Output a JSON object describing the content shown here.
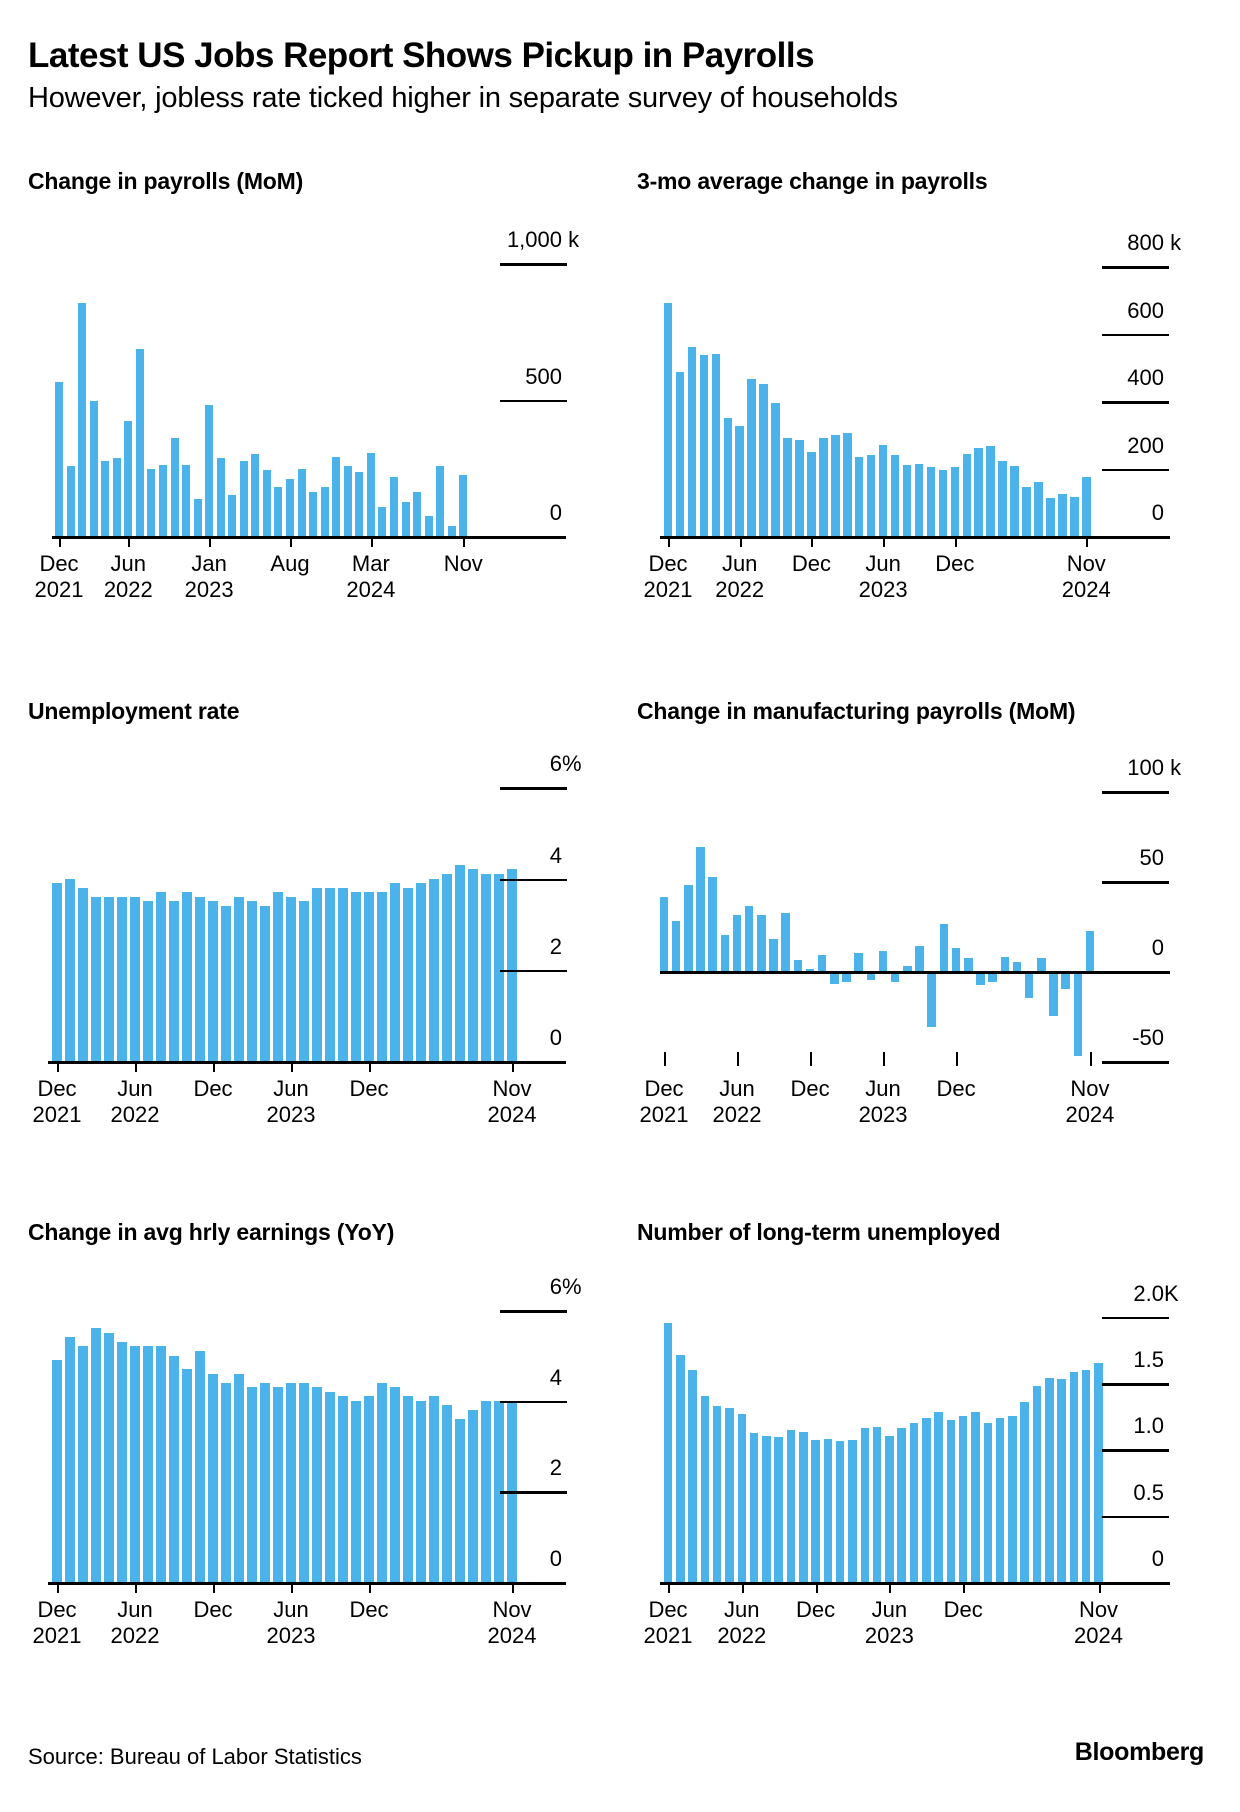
{
  "header": {
    "title": "Latest US Jobs Report Shows Pickup in Payrolls",
    "subtitle": "However, jobless rate ticked higher in separate survey of households"
  },
  "footer": {
    "source": "Source: Bureau of Labor Statistics",
    "brand": "Bloomberg"
  },
  "accent_color": "#4BB3EA",
  "x_months": [
    "2021-12",
    "2022-01",
    "2022-02",
    "2022-03",
    "2022-04",
    "2022-05",
    "2022-06",
    "2022-07",
    "2022-08",
    "2022-09",
    "2022-10",
    "2022-11",
    "2022-12",
    "2023-01",
    "2023-02",
    "2023-03",
    "2023-04",
    "2023-05",
    "2023-06",
    "2023-07",
    "2023-08",
    "2023-09",
    "2023-10",
    "2023-11",
    "2023-12",
    "2024-01",
    "2024-02",
    "2024-03",
    "2024-04",
    "2024-05",
    "2024-06",
    "2024-07",
    "2024-08",
    "2024-09",
    "2024-10",
    "2024-11"
  ],
  "chart_data": [
    {
      "type": "bar",
      "title": "Change in payrolls (MoM)",
      "ylim": [
        0,
        1000
      ],
      "y_axis": {
        "labels": [
          {
            "text": "1,000",
            "suffix": " k",
            "value": 1000
          },
          {
            "text": "500",
            "suffix": "",
            "value": 500
          },
          {
            "text": "0",
            "suffix": "",
            "value": 0
          }
        ]
      },
      "x_ticks": [
        {
          "index": 0,
          "month": "Dec",
          "year": "2021"
        },
        {
          "index": 6,
          "month": "Jun",
          "year": "2022"
        },
        {
          "index": 13,
          "month": "Jan",
          "year": "2023"
        },
        {
          "index": 20,
          "month": "Aug",
          "year": ""
        },
        {
          "index": 27,
          "month": "Mar",
          "year": "2024"
        },
        {
          "index": 35,
          "month": "Nov",
          "year": ""
        }
      ],
      "values": [
        565,
        255,
        855,
        495,
        275,
        285,
        420,
        685,
        245,
        260,
        360,
        260,
        135,
        480,
        285,
        150,
        275,
        300,
        240,
        180,
        210,
        245,
        160,
        180,
        290,
        255,
        235,
        305,
        105,
        215,
        125,
        160,
        75,
        255,
        35,
        225
      ]
    },
    {
      "type": "bar",
      "title": "3-mo average change in payrolls",
      "ylim": [
        0,
        800
      ],
      "y_axis": {
        "labels": [
          {
            "text": "800",
            "suffix": " k",
            "value": 800
          },
          {
            "text": "600",
            "suffix": "",
            "value": 600
          },
          {
            "text": "400",
            "suffix": "",
            "value": 400
          },
          {
            "text": "200",
            "suffix": "",
            "value": 200
          },
          {
            "text": "0",
            "suffix": "",
            "value": 0
          }
        ]
      },
      "x_ticks": [
        {
          "index": 0,
          "month": "Dec",
          "year": "2021"
        },
        {
          "index": 6,
          "month": "Jun",
          "year": "2022"
        },
        {
          "index": 12,
          "month": "Dec",
          "year": ""
        },
        {
          "index": 18,
          "month": "Jun",
          "year": "2023"
        },
        {
          "index": 24,
          "month": "Dec",
          "year": ""
        },
        {
          "index": 35,
          "month": "Nov",
          "year": "2024"
        }
      ],
      "values": [
        690,
        485,
        560,
        535,
        540,
        350,
        325,
        465,
        450,
        395,
        290,
        285,
        250,
        290,
        300,
        305,
        235,
        240,
        270,
        240,
        210,
        212,
        205,
        196,
        204,
        243,
        260,
        267,
        223,
        207,
        146,
        161,
        113,
        123,
        115,
        175
      ]
    },
    {
      "type": "bar",
      "title": "Unemployment rate",
      "ylim": [
        0,
        6
      ],
      "y_axis": {
        "labels": [
          {
            "text": "6",
            "suffix": "%",
            "value": 6
          },
          {
            "text": "4",
            "suffix": "",
            "value": 4
          },
          {
            "text": "2",
            "suffix": "",
            "value": 2
          },
          {
            "text": "0",
            "suffix": "",
            "value": 0
          }
        ]
      },
      "x_ticks": [
        {
          "index": 0,
          "month": "Dec",
          "year": "2021"
        },
        {
          "index": 6,
          "month": "Jun",
          "year": "2022"
        },
        {
          "index": 12,
          "month": "Dec",
          "year": ""
        },
        {
          "index": 18,
          "month": "Jun",
          "year": "2023"
        },
        {
          "index": 24,
          "month": "Dec",
          "year": ""
        },
        {
          "index": 35,
          "month": "Nov",
          "year": "2024"
        }
      ],
      "values": [
        3.9,
        4.0,
        3.8,
        3.6,
        3.6,
        3.6,
        3.6,
        3.5,
        3.7,
        3.5,
        3.7,
        3.6,
        3.5,
        3.4,
        3.6,
        3.5,
        3.4,
        3.7,
        3.6,
        3.5,
        3.8,
        3.8,
        3.8,
        3.7,
        3.7,
        3.7,
        3.9,
        3.8,
        3.9,
        4.0,
        4.1,
        4.3,
        4.2,
        4.1,
        4.1,
        4.2
      ]
    },
    {
      "type": "bar",
      "title": "Change in manufacturing payrolls (MoM)",
      "ylim": [
        -50,
        100
      ],
      "y_axis": {
        "labels": [
          {
            "text": "100",
            "suffix": " k",
            "value": 100
          },
          {
            "text": "50",
            "suffix": "",
            "value": 50
          },
          {
            "text": "0",
            "suffix": "",
            "value": 0
          },
          {
            "text": "-50",
            "suffix": "",
            "value": -50
          }
        ]
      },
      "x_ticks": [
        {
          "index": 0,
          "month": "Dec",
          "year": "2021"
        },
        {
          "index": 6,
          "month": "Jun",
          "year": "2022"
        },
        {
          "index": 12,
          "month": "Dec",
          "year": ""
        },
        {
          "index": 18,
          "month": "Jun",
          "year": "2023"
        },
        {
          "index": 24,
          "month": "Dec",
          "year": ""
        },
        {
          "index": 35,
          "month": "Nov",
          "year": "2024"
        }
      ],
      "values": [
        41,
        28,
        48,
        69,
        52,
        20,
        31,
        36,
        31,
        18,
        32,
        6,
        1,
        9,
        -7,
        -6,
        10,
        -5,
        11,
        -6,
        3,
        14,
        -31,
        26,
        13,
        7,
        -8,
        -6,
        8,
        5,
        -15,
        7,
        -25,
        -10,
        -47,
        22
      ]
    },
    {
      "type": "bar",
      "title": "Change in avg hrly earnings (YoY)",
      "ylim": [
        0,
        6
      ],
      "y_axis": {
        "labels": [
          {
            "text": "6",
            "suffix": "%",
            "value": 6
          },
          {
            "text": "4",
            "suffix": "",
            "value": 4
          },
          {
            "text": "2",
            "suffix": "",
            "value": 2
          },
          {
            "text": "0",
            "suffix": "",
            "value": 0
          }
        ]
      },
      "x_ticks": [
        {
          "index": 0,
          "month": "Dec",
          "year": "2021"
        },
        {
          "index": 6,
          "month": "Jun",
          "year": "2022"
        },
        {
          "index": 12,
          "month": "Dec",
          "year": ""
        },
        {
          "index": 18,
          "month": "Jun",
          "year": "2023"
        },
        {
          "index": 24,
          "month": "Dec",
          "year": ""
        },
        {
          "index": 35,
          "month": "Nov",
          "year": "2024"
        }
      ],
      "values": [
        4.9,
        5.4,
        5.2,
        5.6,
        5.5,
        5.3,
        5.2,
        5.2,
        5.2,
        5.0,
        4.7,
        5.1,
        4.6,
        4.4,
        4.6,
        4.3,
        4.4,
        4.3,
        4.4,
        4.4,
        4.3,
        4.2,
        4.1,
        4.0,
        4.1,
        4.4,
        4.3,
        4.1,
        4.0,
        4.1,
        3.9,
        3.6,
        3.8,
        4.0,
        4.0,
        4.0
      ]
    },
    {
      "type": "bar",
      "title": "Number of long-term unemployed",
      "ylim": [
        0,
        2000
      ],
      "y_axis": {
        "labels": [
          {
            "text": "2.0",
            "suffix": "K",
            "value": 2000
          },
          {
            "text": "1.5",
            "suffix": "",
            "value": 1500
          },
          {
            "text": "1.0",
            "suffix": "",
            "value": 1000
          },
          {
            "text": "0.5",
            "suffix": "",
            "value": 500
          },
          {
            "text": "0",
            "suffix": "",
            "value": 0
          }
        ]
      },
      "x_ticks": [
        {
          "index": 0,
          "month": "Dec",
          "year": "2021"
        },
        {
          "index": 6,
          "month": "Jun",
          "year": "2022"
        },
        {
          "index": 12,
          "month": "Dec",
          "year": ""
        },
        {
          "index": 18,
          "month": "Jun",
          "year": "2023"
        },
        {
          "index": 24,
          "month": "Dec",
          "year": ""
        },
        {
          "index": 35,
          "month": "Nov",
          "year": "2024"
        }
      ],
      "values": [
        1950,
        1710,
        1600,
        1400,
        1330,
        1310,
        1270,
        1120,
        1100,
        1090,
        1150,
        1130,
        1070,
        1080,
        1060,
        1070,
        1160,
        1170,
        1100,
        1160,
        1200,
        1240,
        1280,
        1220,
        1250,
        1280,
        1200,
        1240,
        1250,
        1360,
        1480,
        1540,
        1530,
        1580,
        1600,
        1650
      ]
    }
  ]
}
